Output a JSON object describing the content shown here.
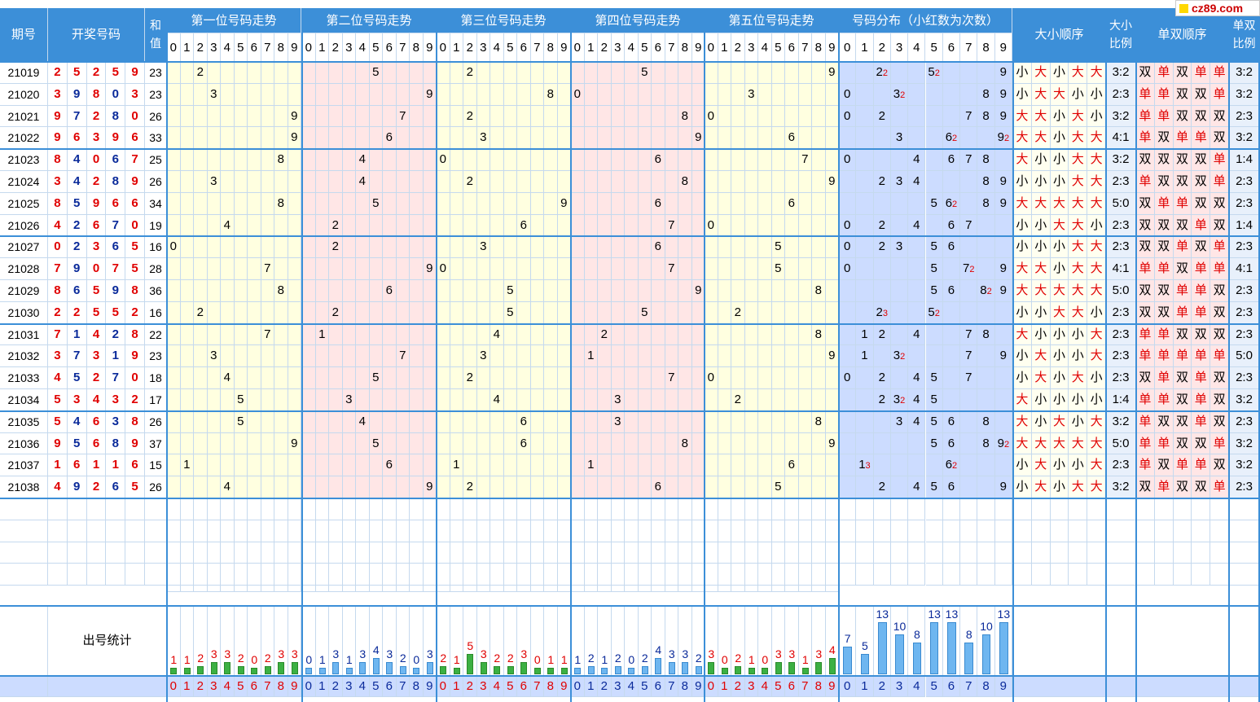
{
  "header": {
    "issue": "期号",
    "draw": "开奖号码",
    "sum": "和值",
    "pos1": "第一位号码走势",
    "pos2": "第二位号码走势",
    "pos3": "第三位号码走势",
    "pos4": "第四位号码走势",
    "pos5": "第五位号码走势",
    "dist": "号码分布（小红数为次数）",
    "bs_seq": "大小顺序",
    "bs_ratio": "大小比例",
    "oe_seq": "单双顺序",
    "oe_ratio": "单双比例"
  },
  "stats_label": "出号统计",
  "logo": "cz89.com",
  "rows": [
    {
      "issue": "21019",
      "nums": [
        2,
        5,
        2,
        5,
        9
      ],
      "sum": 23,
      "bs": "小大小大大",
      "bsr": "3:2",
      "oe": "双单双单单",
      "oer": "3:2"
    },
    {
      "issue": "21020",
      "nums": [
        3,
        9,
        8,
        0,
        3
      ],
      "sum": 23,
      "bs": "小大大小小",
      "bsr": "2:3",
      "oe": "单单双双单",
      "oer": "3:2"
    },
    {
      "issue": "21021",
      "nums": [
        9,
        7,
        2,
        8,
        0
      ],
      "sum": 26,
      "bs": "大大小大小",
      "bsr": "3:2",
      "oe": "单单双双双",
      "oer": "2:3"
    },
    {
      "issue": "21022",
      "nums": [
        9,
        6,
        3,
        9,
        6
      ],
      "sum": 33,
      "bs": "大大小大大",
      "bsr": "4:1",
      "oe": "单双单单双",
      "oer": "3:2"
    },
    {
      "issue": "21023",
      "nums": [
        8,
        4,
        0,
        6,
        7
      ],
      "sum": 25,
      "bs": "大小小大大",
      "bsr": "3:2",
      "oe": "双双双双单",
      "oer": "1:4"
    },
    {
      "issue": "21024",
      "nums": [
        3,
        4,
        2,
        8,
        9
      ],
      "sum": 26,
      "bs": "小小小大大",
      "bsr": "2:3",
      "oe": "单双双双单",
      "oer": "2:3"
    },
    {
      "issue": "21025",
      "nums": [
        8,
        5,
        9,
        6,
        6
      ],
      "sum": 34,
      "bs": "大大大大大",
      "bsr": "5:0",
      "oe": "双单单双双",
      "oer": "2:3"
    },
    {
      "issue": "21026",
      "nums": [
        4,
        2,
        6,
        7,
        0
      ],
      "sum": 19,
      "bs": "小小大大小",
      "bsr": "2:3",
      "oe": "双双双单双",
      "oer": "1:4"
    },
    {
      "issue": "21027",
      "nums": [
        0,
        2,
        3,
        6,
        5
      ],
      "sum": 16,
      "bs": "小小小大大",
      "bsr": "2:3",
      "oe": "双双单双单",
      "oer": "2:3"
    },
    {
      "issue": "21028",
      "nums": [
        7,
        9,
        0,
        7,
        5
      ],
      "sum": 28,
      "bs": "大大小大大",
      "bsr": "4:1",
      "oe": "单单双单单",
      "oer": "4:1"
    },
    {
      "issue": "21029",
      "nums": [
        8,
        6,
        5,
        9,
        8
      ],
      "sum": 36,
      "bs": "大大大大大",
      "bsr": "5:0",
      "oe": "双双单单双",
      "oer": "2:3"
    },
    {
      "issue": "21030",
      "nums": [
        2,
        2,
        5,
        5,
        2
      ],
      "sum": 16,
      "bs": "小小大大小",
      "bsr": "2:3",
      "oe": "双双单单双",
      "oer": "2:3"
    },
    {
      "issue": "21031",
      "nums": [
        7,
        1,
        4,
        2,
        8
      ],
      "sum": 22,
      "bs": "大小小小大",
      "bsr": "2:3",
      "oe": "单单双双双",
      "oer": "2:3"
    },
    {
      "issue": "21032",
      "nums": [
        3,
        7,
        3,
        1,
        9
      ],
      "sum": 23,
      "bs": "小大小小大",
      "bsr": "2:3",
      "oe": "单单单单单",
      "oer": "5:0"
    },
    {
      "issue": "21033",
      "nums": [
        4,
        5,
        2,
        7,
        0
      ],
      "sum": 18,
      "bs": "小大小大小",
      "bsr": "2:3",
      "oe": "双单双单双",
      "oer": "2:3"
    },
    {
      "issue": "21034",
      "nums": [
        5,
        3,
        4,
        3,
        2
      ],
      "sum": 17,
      "bs": "大小小小小",
      "bsr": "1:4",
      "oe": "单单双单双",
      "oer": "3:2"
    },
    {
      "issue": "21035",
      "nums": [
        5,
        4,
        6,
        3,
        8
      ],
      "sum": 26,
      "bs": "大小大小大",
      "bsr": "3:2",
      "oe": "单双双单双",
      "oer": "2:3"
    },
    {
      "issue": "21036",
      "nums": [
        9,
        5,
        6,
        8,
        9
      ],
      "sum": 37,
      "bs": "大大大大大",
      "bsr": "5:0",
      "oe": "单单双双单",
      "oer": "3:2"
    },
    {
      "issue": "21037",
      "nums": [
        1,
        6,
        1,
        1,
        6
      ],
      "sum": 15,
      "bs": "小大小小大",
      "bsr": "2:3",
      "oe": "单双单单双",
      "oer": "3:2"
    },
    {
      "issue": "21038",
      "nums": [
        4,
        9,
        2,
        6,
        5
      ],
      "sum": 26,
      "bs": "小大小大大",
      "bsr": "3:2",
      "oe": "双单双双单",
      "oer": "2:3"
    }
  ],
  "dist_counts_display": [
    {
      "row": 0,
      "d": 2,
      "c": 2
    },
    {
      "row": 0,
      "d": 5,
      "c": 2
    },
    {
      "row": 1,
      "d": 3,
      "c": 2
    },
    {
      "row": 3,
      "d": 6,
      "c": 2
    },
    {
      "row": 3,
      "d": 9,
      "c": 2
    },
    {
      "row": 6,
      "d": 6,
      "c": 2
    },
    {
      "row": 9,
      "d": 7,
      "c": 2
    },
    {
      "row": 10,
      "d": 8,
      "c": 2
    },
    {
      "row": 11,
      "d": 2,
      "c": 3
    },
    {
      "row": 11,
      "d": 5,
      "c": 2
    },
    {
      "row": 13,
      "d": 3,
      "c": 2
    },
    {
      "row": 15,
      "d": 3,
      "c": 2
    },
    {
      "row": 17,
      "d": 9,
      "c": 2
    },
    {
      "row": 18,
      "d": 1,
      "c": 3
    },
    {
      "row": 18,
      "d": 6,
      "c": 2
    }
  ],
  "stats": {
    "pos1": [
      1,
      1,
      2,
      3,
      3,
      2,
      0,
      2,
      3,
      3
    ],
    "pos2": [
      0,
      1,
      3,
      1,
      3,
      4,
      3,
      2,
      0,
      3
    ],
    "pos3": [
      2,
      1,
      5,
      3,
      2,
      2,
      3,
      0,
      1,
      1
    ],
    "pos4": [
      1,
      2,
      1,
      2,
      0,
      2,
      4,
      3,
      3,
      2
    ],
    "pos5": [
      3,
      0,
      2,
      1,
      0,
      3,
      3,
      1,
      3,
      4
    ],
    "dist": [
      7,
      5,
      13,
      10,
      8,
      13,
      13,
      8,
      10,
      13
    ]
  },
  "colors": {
    "header": "#3c8fd8",
    "pos_yellow": "#ffffe0",
    "pos_pink": "#ffe6e6",
    "dist_blue": "#ccdcff",
    "grid": "#c5d9ee",
    "red": "#e00000",
    "navy": "#0a2a9a",
    "bar_red": "#e00000",
    "bar_green": "#2aa02a",
    "bar_blue": "#5aa8e8"
  },
  "digits": [
    "0",
    "1",
    "2",
    "3",
    "4",
    "5",
    "6",
    "7",
    "8",
    "9"
  ]
}
